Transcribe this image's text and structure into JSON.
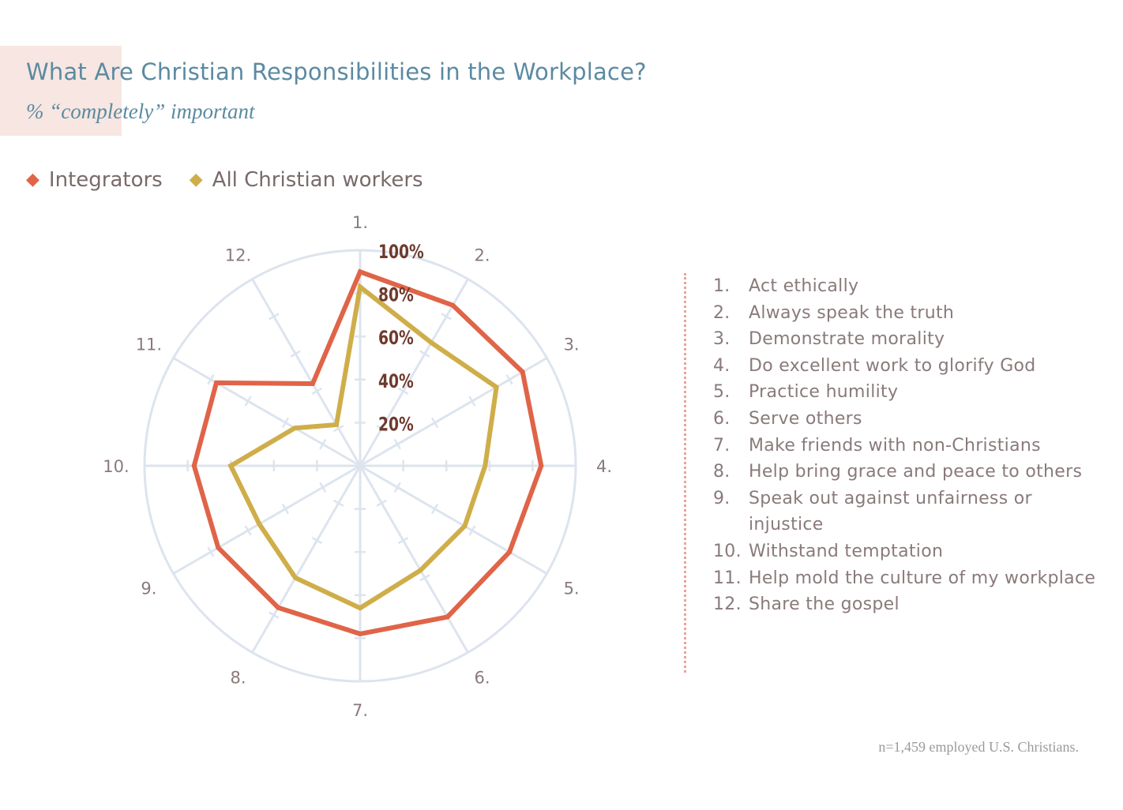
{
  "chart": {
    "title": "What Are Christian Responsibilities in the Workplace?",
    "subtitle": "% “completely” important",
    "footnote": "n=1,459 employed U.S. Christians."
  },
  "legend": {
    "integrators": "Integrators",
    "all_christian_workers": "All Christian workers"
  },
  "colors": {
    "integrators": "#e06448",
    "all_christian_workers": "#cfae4a",
    "grid": "#dde4ee",
    "tick_label": "#6e3a2e",
    "title": "#5b8aa1",
    "text": "#8a7a7a",
    "divider": "#e8a497"
  },
  "items": [
    {
      "num": "1.",
      "text": "Act ethically"
    },
    {
      "num": "2.",
      "text": "Always speak the truth"
    },
    {
      "num": "3.",
      "text": "Demonstrate morality"
    },
    {
      "num": "4.",
      "text": "Do excellent work to glorify God"
    },
    {
      "num": "5.",
      "text": "Practice humility"
    },
    {
      "num": "6.",
      "text": "Serve others"
    },
    {
      "num": "7.",
      "text": "Make friends with non-Christians"
    },
    {
      "num": "8.",
      "text": "Help bring grace and peace to others"
    },
    {
      "num": "9.",
      "text": "Speak out against unfairness or injustice"
    },
    {
      "num": "10.",
      "text": "Withstand temptation"
    },
    {
      "num": "11.",
      "text": "Help mold the culture of my workplace"
    },
    {
      "num": "12.",
      "text": "Share the gospel"
    }
  ],
  "chart_data": {
    "type": "radar",
    "title": "What Are Christian Responsibilities in the Workplace?",
    "subtitle": "% “completely” important",
    "categories": [
      "1.",
      "2.",
      "3.",
      "4.",
      "5.",
      "6.",
      "7.",
      "8.",
      "9.",
      "10.",
      "11.",
      "12."
    ],
    "radial_ticks": [
      "20%",
      "40%",
      "60%",
      "80%",
      "100%"
    ],
    "radial_tick_values": [
      20,
      40,
      60,
      80,
      100
    ],
    "rlim": [
      0,
      100
    ],
    "grid": true,
    "legend_position": "top-left",
    "series": [
      {
        "name": "Integrators",
        "values": [
          90,
          86,
          87,
          84,
          80,
          81,
          78,
          76,
          76,
          77,
          77,
          44
        ]
      },
      {
        "name": "All Christian workers",
        "values": [
          83,
          66,
          73,
          58,
          56,
          56,
          66,
          60,
          54,
          60,
          35,
          22
        ]
      }
    ]
  }
}
